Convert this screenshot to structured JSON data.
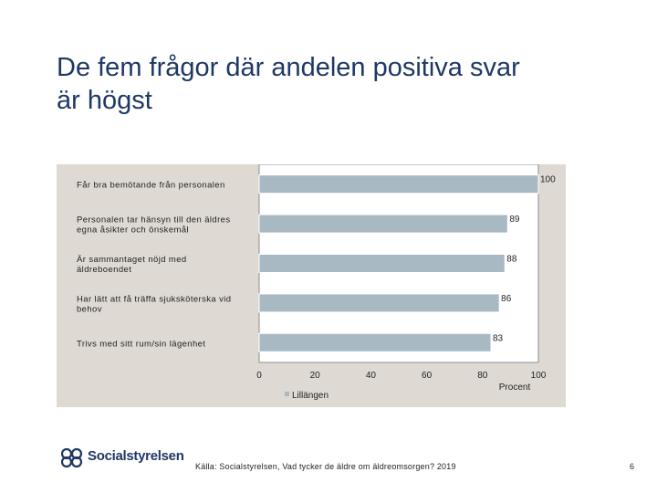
{
  "slide": {
    "title_line1": "De fem frågor där andelen positiva svar",
    "title_line2": "är högst",
    "source": "Källa: Socialstyrelsen, Vad tycker de äldre om äldreomsorgen? 2019",
    "page_number": "6"
  },
  "logo": {
    "text": "Socialstyrelsen"
  },
  "colors": {
    "bar": "#a9b9c4",
    "panel": "#dedad3",
    "plot": "#ffffff",
    "title": "#1f3864"
  },
  "chart_data": {
    "type": "bar",
    "orientation": "horizontal",
    "categories": [
      [
        "Får bra bemötande från personalen"
      ],
      [
        "Personalen tar hänsyn till den äldres",
        "egna åsikter och önskemål"
      ],
      [
        "Är sammantaget nöjd med",
        "äldreboendet"
      ],
      [
        "Har lätt att få träffa sjuksköterska vid",
        "behov"
      ],
      [
        "Trivs med sitt rum/sin lägenhet"
      ]
    ],
    "series": [
      {
        "name": "Lillängen",
        "values": [
          100,
          89,
          88,
          86,
          83
        ]
      }
    ],
    "xlim": [
      0,
      100
    ],
    "xticks": [
      0,
      20,
      40,
      60,
      80,
      100
    ],
    "xlabel": "Procent",
    "legend_position": "bottom",
    "grid": false
  }
}
